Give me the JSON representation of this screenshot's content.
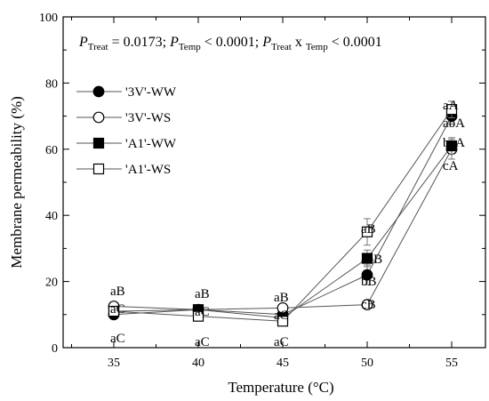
{
  "chart_data": {
    "type": "line",
    "title": "",
    "annotation": {
      "p": "P",
      "sub_treat": "Treat",
      "val_treat": " = 0.0173; ",
      "sub_temp": "Temp",
      "val_temp": " < 0.0001; ",
      "sub_treat2": "Treat",
      "cross": " x ",
      "sub_temp2": "Temp",
      "val_inter": " < 0.0001"
    },
    "xlabel": "Temperature (°C)",
    "ylabel": "Membrane permeability (%)",
    "x": [
      35,
      40,
      45,
      50,
      55
    ],
    "x_ticks": [
      "35",
      "40",
      "45",
      "50",
      "55"
    ],
    "xlim": [
      32,
      57
    ],
    "ylim": [
      0,
      100
    ],
    "y_ticks": [
      "0",
      "20",
      "40",
      "60",
      "80",
      "100"
    ],
    "grid": false,
    "legend_position": "upper-left",
    "series": [
      {
        "name": "'3V'-WW",
        "marker": "circle",
        "fill": "filled",
        "values": [
          10,
          11.5,
          10,
          22,
          70
        ],
        "err": [
          0.8,
          1,
          0.8,
          3,
          2.5
        ]
      },
      {
        "name": "'3V'-WS",
        "marker": "circle",
        "fill": "open",
        "values": [
          12.5,
          11.5,
          12,
          13,
          60
        ],
        "err": [
          0.8,
          0.8,
          0.8,
          1.2,
          3
        ]
      },
      {
        "name": "'A1'-WW",
        "marker": "square",
        "fill": "filled",
        "values": [
          11,
          11.5,
          9,
          27,
          61
        ],
        "err": [
          0.8,
          1,
          0.8,
          2.5,
          2.5
        ]
      },
      {
        "name": "'A1'-WS",
        "marker": "square",
        "fill": "open",
        "values": [
          11,
          9.5,
          8,
          35,
          72
        ],
        "err": [
          0.8,
          1,
          0.8,
          4,
          2.5
        ]
      }
    ],
    "letters": {
      "35": [
        "aB",
        "aC",
        "aC"
      ],
      "40": [
        "aB",
        "aC",
        "aC"
      ],
      "45": [
        "aB",
        "aC",
        "aC"
      ],
      "50": [
        "aB",
        "abB",
        "bB",
        "cB"
      ],
      "55": [
        "aA",
        "abA",
        "bcA",
        "cA"
      ]
    }
  }
}
